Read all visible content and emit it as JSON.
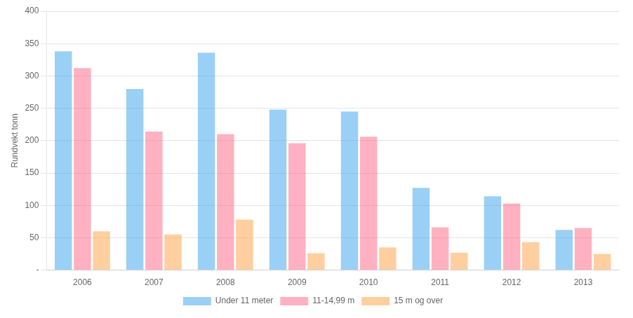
{
  "chart_data": {
    "type": "bar",
    "y_label": "Rundvekt tonn",
    "categories": [
      "2006",
      "2007",
      "2008",
      "2009",
      "2010",
      "2011",
      "2012",
      "2013"
    ],
    "series": [
      {
        "name": "Under 11 meter",
        "values": [
          338,
          280,
          336,
          248,
          245,
          127,
          114,
          62
        ]
      },
      {
        "name": "11-14,99 m",
        "values": [
          312,
          214,
          210,
          196,
          206,
          66,
          103,
          65
        ]
      },
      {
        "name": "15 m og over",
        "values": [
          60,
          55,
          78,
          26,
          35,
          27,
          43,
          25
        ]
      }
    ],
    "ylim": [
      0,
      400
    ],
    "yticks": [
      {
        "value": 0,
        "label": "-"
      },
      50,
      100,
      150,
      200,
      250,
      300,
      350,
      400
    ],
    "grid": true,
    "legend": "bottom"
  }
}
